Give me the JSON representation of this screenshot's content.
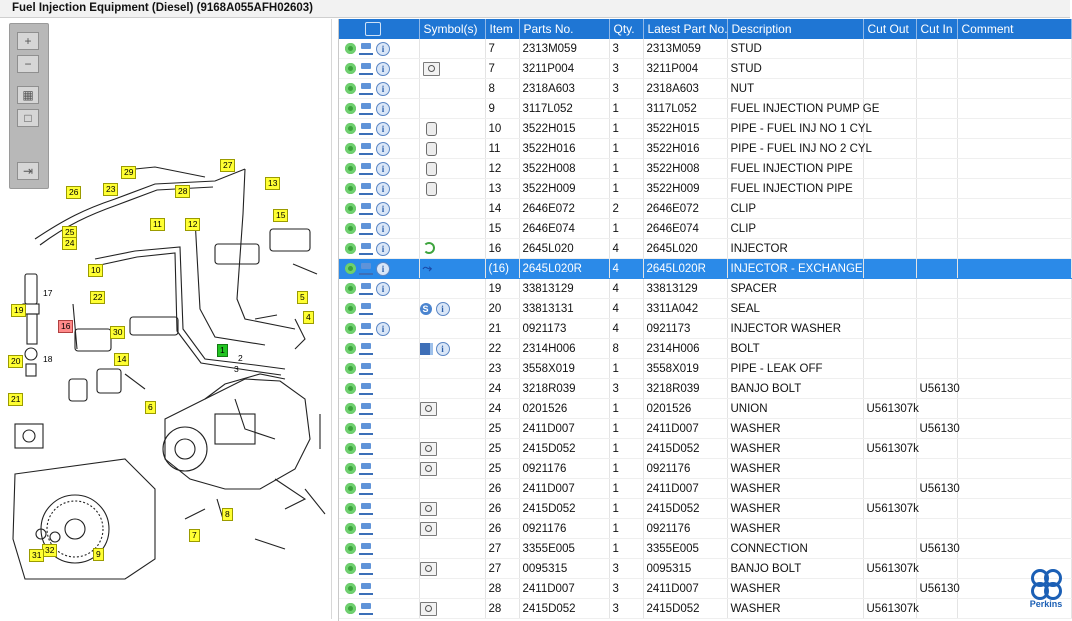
{
  "window": {
    "title": "Fuel Injection Equipment (Diesel) (9168A055AFH02603)"
  },
  "diagram": {
    "zoom_buttons": [
      {
        "name": "zoom-in-button",
        "glyph": "+"
      },
      {
        "name": "zoom-out-button",
        "glyph": "−"
      },
      {
        "name": "fit-view-button",
        "glyph": "▦"
      },
      {
        "name": "actual-size-button",
        "glyph": "□"
      },
      {
        "name": "export-button",
        "glyph": "⇥"
      }
    ],
    "tags": [
      "1",
      "2",
      "3",
      "4",
      "5",
      "6",
      "7",
      "8",
      "9",
      "10",
      "11",
      "12",
      "13",
      "14",
      "15",
      "16",
      "17",
      "18",
      "19",
      "20",
      "21",
      "22",
      "23",
      "24",
      "25",
      "26",
      "27",
      "28",
      "29",
      "30",
      "31",
      "32"
    ]
  },
  "table": {
    "columns": [
      "",
      "Symbol(s)",
      "Item",
      "Parts No.",
      "Qty.",
      "Latest Part No.",
      "Description",
      "Cut Out",
      "Cut In",
      "Comment"
    ],
    "rows": [
      {
        "icons": "gci",
        "sym": "",
        "item": "7",
        "part": "2313M059",
        "qty": "3",
        "latest": "2313M059",
        "desc": "STUD",
        "cutout": "",
        "cutin": "",
        "comment": ""
      },
      {
        "icons": "gci",
        "sym": "mag",
        "item": "7",
        "part": "3211P004",
        "qty": "3",
        "latest": "3211P004",
        "desc": "STUD",
        "cutout": "",
        "cutin": "",
        "comment": ""
      },
      {
        "icons": "gci",
        "sym": "",
        "item": "8",
        "part": "2318A603",
        "qty": "3",
        "latest": "2318A603",
        "desc": "NUT",
        "cutout": "",
        "cutin": "",
        "comment": ""
      },
      {
        "icons": "gci",
        "sym": "",
        "item": "9",
        "part": "3117L052",
        "qty": "1",
        "latest": "3117L052",
        "desc": "FUEL INJECTION PUMP GE",
        "cutout": "",
        "cutin": "",
        "comment": ""
      },
      {
        "icons": "gci",
        "sym": "pipe",
        "item": "10",
        "part": "3522H015",
        "qty": "1",
        "latest": "3522H015",
        "desc": "PIPE - FUEL INJ NO 1 CYL",
        "cutout": "",
        "cutin": "",
        "comment": ""
      },
      {
        "icons": "gci",
        "sym": "pipe",
        "item": "11",
        "part": "3522H016",
        "qty": "1",
        "latest": "3522H016",
        "desc": "PIPE - FUEL INJ NO 2 CYL",
        "cutout": "",
        "cutin": "",
        "comment": ""
      },
      {
        "icons": "gci",
        "sym": "pipe",
        "item": "12",
        "part": "3522H008",
        "qty": "1",
        "latest": "3522H008",
        "desc": "FUEL INJECTION PIPE",
        "cutout": "",
        "cutin": "",
        "comment": ""
      },
      {
        "icons": "gci",
        "sym": "pipe",
        "item": "13",
        "part": "3522H009",
        "qty": "1",
        "latest": "3522H009",
        "desc": "FUEL INJECTION PIPE",
        "cutout": "",
        "cutin": "",
        "comment": ""
      },
      {
        "icons": "gci",
        "sym": "",
        "item": "14",
        "part": "2646E072",
        "qty": "2",
        "latest": "2646E072",
        "desc": "CLIP",
        "cutout": "",
        "cutin": "",
        "comment": ""
      },
      {
        "icons": "gci",
        "sym": "",
        "item": "15",
        "part": "2646E074",
        "qty": "1",
        "latest": "2646E074",
        "desc": "CLIP",
        "cutout": "",
        "cutin": "",
        "comment": ""
      },
      {
        "icons": "gci",
        "sym": "green",
        "item": "16",
        "part": "2645L020",
        "qty": "4",
        "latest": "2645L020",
        "desc": "INJECTOR",
        "cutout": "",
        "cutin": "",
        "comment": ""
      },
      {
        "icons": "gci",
        "sym": "split",
        "item": "(16)",
        "part": "2645L020R",
        "qty": "4",
        "latest": "2645L020R",
        "desc": "INJECTOR - EXCHANGE",
        "cutout": "",
        "cutin": "",
        "comment": "",
        "selected": true
      },
      {
        "icons": "gci",
        "sym": "",
        "item": "19",
        "part": "33813129",
        "qty": "4",
        "latest": "33813129",
        "desc": "SPACER",
        "cutout": "",
        "cutin": "",
        "comment": ""
      },
      {
        "icons": "gc",
        "sym": "s",
        "item": "20",
        "part": "33813131",
        "qty": "4",
        "latest": "3311A042",
        "desc": "SEAL",
        "cutout": "",
        "cutin": "",
        "comment": ""
      },
      {
        "icons": "gci",
        "sym": "",
        "item": "21",
        "part": "0921173",
        "qty": "4",
        "latest": "0921173",
        "desc": "INJECTOR WASHER",
        "cutout": "",
        "cutin": "",
        "comment": ""
      },
      {
        "icons": "gc",
        "sym": "book",
        "item": "22",
        "part": "2314H006",
        "qty": "8",
        "latest": "2314H006",
        "desc": "BOLT",
        "cutout": "",
        "cutin": "",
        "comment": ""
      },
      {
        "icons": "gc",
        "sym": "",
        "item": "23",
        "part": "3558X019",
        "qty": "1",
        "latest": "3558X019",
        "desc": "PIPE - LEAK OFF",
        "cutout": "",
        "cutin": "",
        "comment": ""
      },
      {
        "icons": "gc",
        "sym": "",
        "item": "24",
        "part": "3218R039",
        "qty": "3",
        "latest": "3218R039",
        "desc": "BANJO BOLT",
        "cutout": "",
        "cutin": "U56130",
        "comment": ""
      },
      {
        "icons": "gc",
        "sym": "mag",
        "item": "24",
        "part": "0201526",
        "qty": "1",
        "latest": "0201526",
        "desc": "UNION",
        "cutout": "U561307k",
        "cutin": "",
        "comment": ""
      },
      {
        "icons": "gc",
        "sym": "",
        "item": "25",
        "part": "2411D007",
        "qty": "1",
        "latest": "2411D007",
        "desc": "WASHER",
        "cutout": "",
        "cutin": "U56130",
        "comment": ""
      },
      {
        "icons": "gc",
        "sym": "mag",
        "item": "25",
        "part": "2415D052",
        "qty": "1",
        "latest": "2415D052",
        "desc": "WASHER",
        "cutout": "U561307k",
        "cutin": "",
        "comment": ""
      },
      {
        "icons": "gc",
        "sym": "mag",
        "item": "25",
        "part": "0921176",
        "qty": "1",
        "latest": "0921176",
        "desc": "WASHER",
        "cutout": "",
        "cutin": "",
        "comment": ""
      },
      {
        "icons": "gc",
        "sym": "",
        "item": "26",
        "part": "2411D007",
        "qty": "1",
        "latest": "2411D007",
        "desc": "WASHER",
        "cutout": "",
        "cutin": "U56130",
        "comment": ""
      },
      {
        "icons": "gc",
        "sym": "mag",
        "item": "26",
        "part": "2415D052",
        "qty": "1",
        "latest": "2415D052",
        "desc": "WASHER",
        "cutout": "U561307k",
        "cutin": "",
        "comment": ""
      },
      {
        "icons": "gc",
        "sym": "mag",
        "item": "26",
        "part": "0921176",
        "qty": "1",
        "latest": "0921176",
        "desc": "WASHER",
        "cutout": "",
        "cutin": "",
        "comment": ""
      },
      {
        "icons": "gc",
        "sym": "",
        "item": "27",
        "part": "3355E005",
        "qty": "1",
        "latest": "3355E005",
        "desc": "CONNECTION",
        "cutout": "",
        "cutin": "U56130",
        "comment": ""
      },
      {
        "icons": "gc",
        "sym": "mag",
        "item": "27",
        "part": "0095315",
        "qty": "3",
        "latest": "0095315",
        "desc": "BANJO BOLT",
        "cutout": "U561307k",
        "cutin": "",
        "comment": ""
      },
      {
        "icons": "gc",
        "sym": "",
        "item": "28",
        "part": "2411D007",
        "qty": "3",
        "latest": "2411D007",
        "desc": "WASHER",
        "cutout": "",
        "cutin": "U56130",
        "comment": ""
      },
      {
        "icons": "gc",
        "sym": "mag",
        "item": "28",
        "part": "2415D052",
        "qty": "3",
        "latest": "2415D052",
        "desc": "WASHER",
        "cutout": "U561307k",
        "cutin": "",
        "comment": ""
      }
    ]
  },
  "brand": {
    "name": "Perkins",
    "color": "#1b5fb5"
  },
  "colors": {
    "header": "#1f76d4",
    "selected_row": "#2b8ae8",
    "callout_yellow": "#ffff33",
    "callout_red": "#ff8a8a",
    "callout_green": "#22c422"
  }
}
